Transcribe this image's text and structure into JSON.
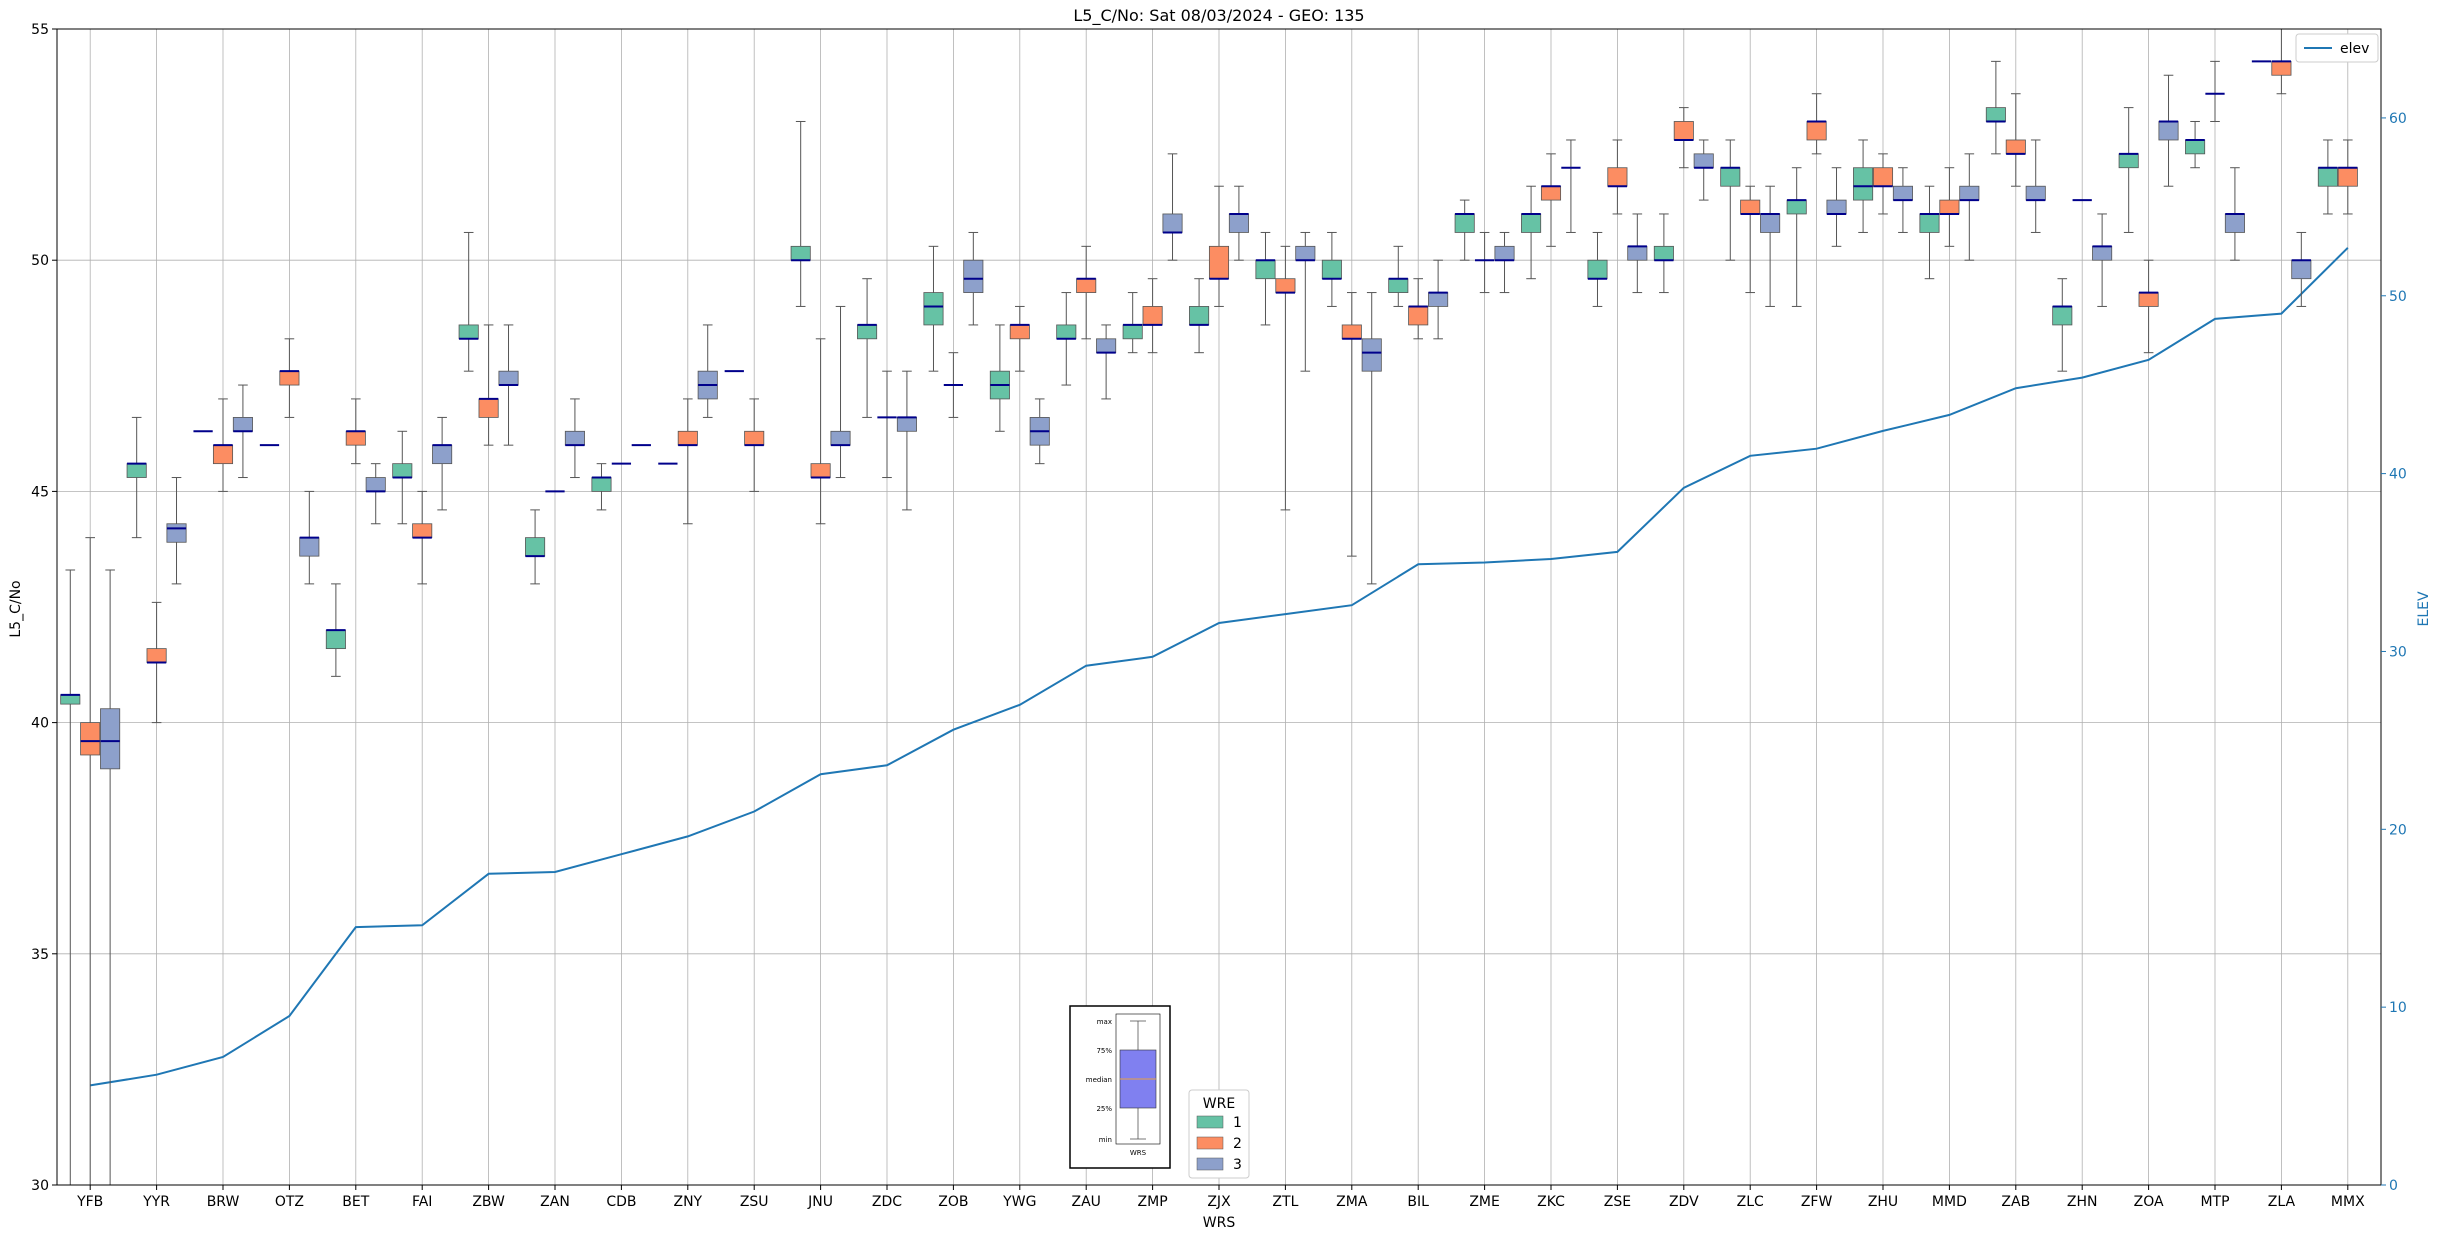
{
  "chart_data": {
    "type": "boxplot",
    "title": "L5_C/No: Sat 08/03/2024 - GEO: 135",
    "xlabel": "WRS",
    "ylabel": "L5_C/No",
    "y2label": "ELEV",
    "ylim": [
      30,
      55
    ],
    "y2lim": [
      0,
      65
    ],
    "yticks": [
      "30",
      "35",
      "40",
      "45",
      "50",
      "55"
    ],
    "y2ticks": [
      "0",
      "10",
      "20",
      "30",
      "40",
      "50",
      "60"
    ],
    "grid": true,
    "colors": {
      "wre1": "#66c2a5",
      "wre2": "#fc8d62",
      "wre3": "#8da0cb",
      "median": "#00008b",
      "whisker": "#555555",
      "elev_line": "#1f77b4",
      "y2_axis": "#1f77b4"
    },
    "categories": [
      "YFB",
      "YYR",
      "BRW",
      "OTZ",
      "BET",
      "FAI",
      "ZBW",
      "ZAN",
      "CDB",
      "ZNY",
      "ZSU",
      "JNU",
      "ZDC",
      "ZOB",
      "YWG",
      "ZAU",
      "ZMP",
      "ZJX",
      "ZTL",
      "ZMA",
      "BIL",
      "ZME",
      "ZKC",
      "ZSE",
      "ZDV",
      "ZLC",
      "ZFW",
      "ZHU",
      "MMD",
      "ZAB",
      "ZHN",
      "ZOA",
      "MTP",
      "ZLA",
      "MMX"
    ],
    "legend": {
      "title": "WRE",
      "items": [
        "1",
        "2",
        "3"
      ],
      "placement": "bottom-center"
    },
    "legend_elev": {
      "label": "elev",
      "placement": "top-right"
    },
    "boxes": [
      {
        "wrs": "YFB",
        "wre": 1,
        "min": 30,
        "q1": 40.4,
        "median": 40.6,
        "q3": 40.6,
        "max": 43.3
      },
      {
        "wrs": "YFB",
        "wre": 2,
        "min": 30,
        "q1": 39.3,
        "median": 39.6,
        "q3": 40,
        "max": 44
      },
      {
        "wrs": "YFB",
        "wre": 3,
        "min": 30,
        "q1": 39,
        "median": 39.6,
        "q3": 40.3,
        "max": 43.3
      },
      {
        "wrs": "YYR",
        "wre": 1,
        "min": 44,
        "q1": 45.3,
        "median": 45.6,
        "q3": 45.6,
        "max": 46.6
      },
      {
        "wrs": "YYR",
        "wre": 2,
        "min": 40,
        "q1": 41.3,
        "median": 41.3,
        "q3": 41.6,
        "max": 42.6
      },
      {
        "wrs": "YYR",
        "wre": 3,
        "min": 43,
        "q1": 43.9,
        "median": 44.2,
        "q3": 44.3,
        "max": 45.3
      },
      {
        "wrs": "BRW",
        "wre": 1,
        "min": 46.3,
        "q1": 46.3,
        "median": 46.3,
        "q3": 46.3,
        "max": 46.3
      },
      {
        "wrs": "BRW",
        "wre": 2,
        "min": 45,
        "q1": 45.6,
        "median": 46,
        "q3": 46,
        "max": 47
      },
      {
        "wrs": "BRW",
        "wre": 3,
        "min": 45.3,
        "q1": 46.3,
        "median": 46.3,
        "q3": 46.6,
        "max": 47.3
      },
      {
        "wrs": "OTZ",
        "wre": 1,
        "min": 46,
        "q1": 46,
        "median": 46,
        "q3": 46,
        "max": 46
      },
      {
        "wrs": "OTZ",
        "wre": 2,
        "min": 46.6,
        "q1": 47.3,
        "median": 47.6,
        "q3": 47.6,
        "max": 48.3
      },
      {
        "wrs": "OTZ",
        "wre": 3,
        "min": 43,
        "q1": 43.6,
        "median": 44,
        "q3": 44,
        "max": 45
      },
      {
        "wrs": "BET",
        "wre": 1,
        "min": 41,
        "q1": 41.6,
        "median": 42,
        "q3": 42,
        "max": 43
      },
      {
        "wrs": "BET",
        "wre": 2,
        "min": 45.6,
        "q1": 46,
        "median": 46.3,
        "q3": 46.3,
        "max": 47
      },
      {
        "wrs": "BET",
        "wre": 3,
        "min": 44.3,
        "q1": 45,
        "median": 45,
        "q3": 45.3,
        "max": 45.6
      },
      {
        "wrs": "FAI",
        "wre": 1,
        "min": 44.3,
        "q1": 45.3,
        "median": 45.3,
        "q3": 45.6,
        "max": 46.3
      },
      {
        "wrs": "FAI",
        "wre": 2,
        "min": 43,
        "q1": 44,
        "median": 44,
        "q3": 44.3,
        "max": 45
      },
      {
        "wrs": "FAI",
        "wre": 3,
        "min": 44.6,
        "q1": 45.6,
        "median": 46,
        "q3": 46,
        "max": 46.6
      },
      {
        "wrs": "ZBW",
        "wre": 1,
        "min": 47.6,
        "q1": 48.3,
        "median": 48.3,
        "q3": 48.6,
        "max": 50.6
      },
      {
        "wrs": "ZBW",
        "wre": 2,
        "min": 46,
        "q1": 46.6,
        "median": 47,
        "q3": 47,
        "max": 48.6
      },
      {
        "wrs": "ZBW",
        "wre": 3,
        "min": 46,
        "q1": 47.3,
        "median": 47.3,
        "q3": 47.6,
        "max": 48.6
      },
      {
        "wrs": "ZAN",
        "wre": 1,
        "min": 43,
        "q1": 43.6,
        "median": 43.6,
        "q3": 44,
        "max": 44.6
      },
      {
        "wrs": "ZAN",
        "wre": 2,
        "min": 45,
        "q1": 45,
        "median": 45,
        "q3": 45,
        "max": 45
      },
      {
        "wrs": "ZAN",
        "wre": 3,
        "min": 45.3,
        "q1": 46,
        "median": 46,
        "q3": 46.3,
        "max": 47
      },
      {
        "wrs": "CDB",
        "wre": 1,
        "min": 44.6,
        "q1": 45,
        "median": 45.3,
        "q3": 45.3,
        "max": 45.6
      },
      {
        "wrs": "CDB",
        "wre": 2,
        "min": 45.6,
        "q1": 45.6,
        "median": 45.6,
        "q3": 45.6,
        "max": 45.6
      },
      {
        "wrs": "CDB",
        "wre": 3,
        "min": 46,
        "q1": 46,
        "median": 46,
        "q3": 46,
        "max": 46
      },
      {
        "wrs": "ZNY",
        "wre": 1,
        "min": 45.6,
        "q1": 45.6,
        "median": 45.6,
        "q3": 45.6,
        "max": 45.6
      },
      {
        "wrs": "ZNY",
        "wre": 2,
        "min": 44.3,
        "q1": 46,
        "median": 46,
        "q3": 46.3,
        "max": 47
      },
      {
        "wrs": "ZNY",
        "wre": 3,
        "min": 46.6,
        "q1": 47,
        "median": 47.3,
        "q3": 47.6,
        "max": 48.6
      },
      {
        "wrs": "ZSU",
        "wre": 1,
        "min": 47.6,
        "q1": 47.6,
        "median": 47.6,
        "q3": 47.6,
        "max": 47.6
      },
      {
        "wrs": "ZSU",
        "wre": 2,
        "min": 45,
        "q1": 46,
        "median": 46,
        "q3": 46.3,
        "max": 47
      },
      {
        "wrs": "JNU",
        "wre": 1,
        "min": 49,
        "q1": 50,
        "median": 50,
        "q3": 50.3,
        "max": 53
      },
      {
        "wrs": "JNU",
        "wre": 2,
        "min": 44.3,
        "q1": 45.3,
        "median": 45.3,
        "q3": 45.6,
        "max": 48.3
      },
      {
        "wrs": "JNU",
        "wre": 3,
        "min": 45.3,
        "q1": 46,
        "median": 46,
        "q3": 46.3,
        "max": 49
      },
      {
        "wrs": "ZDC",
        "wre": 1,
        "min": 46.6,
        "q1": 48.3,
        "median": 48.6,
        "q3": 48.6,
        "max": 49.6
      },
      {
        "wrs": "ZDC",
        "wre": 2,
        "min": 45.3,
        "q1": 46.6,
        "median": 46.6,
        "q3": 46.6,
        "max": 47.6
      },
      {
        "wrs": "ZDC",
        "wre": 3,
        "min": 44.6,
        "q1": 46.3,
        "median": 46.6,
        "q3": 46.6,
        "max": 47.6
      },
      {
        "wrs": "ZOB",
        "wre": 1,
        "min": 47.6,
        "q1": 48.6,
        "median": 49,
        "q3": 49.3,
        "max": 50.3
      },
      {
        "wrs": "ZOB",
        "wre": 2,
        "min": 46.6,
        "q1": 47.3,
        "median": 47.3,
        "q3": 47.3,
        "max": 48
      },
      {
        "wrs": "ZOB",
        "wre": 3,
        "min": 48.6,
        "q1": 49.3,
        "median": 49.6,
        "q3": 50,
        "max": 50.6
      },
      {
        "wrs": "YWG",
        "wre": 1,
        "min": 46.3,
        "q1": 47,
        "median": 47.3,
        "q3": 47.6,
        "max": 48.6
      },
      {
        "wrs": "YWG",
        "wre": 2,
        "min": 47.6,
        "q1": 48.3,
        "median": 48.6,
        "q3": 48.6,
        "max": 49
      },
      {
        "wrs": "YWG",
        "wre": 3,
        "min": 45.6,
        "q1": 46,
        "median": 46.3,
        "q3": 46.6,
        "max": 47
      },
      {
        "wrs": "ZAU",
        "wre": 1,
        "min": 47.3,
        "q1": 48.3,
        "median": 48.3,
        "q3": 48.6,
        "max": 49.3
      },
      {
        "wrs": "ZAU",
        "wre": 2,
        "min": 48.3,
        "q1": 49.3,
        "median": 49.6,
        "q3": 49.6,
        "max": 50.3
      },
      {
        "wrs": "ZAU",
        "wre": 3,
        "min": 47,
        "q1": 48,
        "median": 48,
        "q3": 48.3,
        "max": 48.6
      },
      {
        "wrs": "ZMP",
        "wre": 1,
        "min": 48,
        "q1": 48.3,
        "median": 48.6,
        "q3": 48.6,
        "max": 49.3
      },
      {
        "wrs": "ZMP",
        "wre": 2,
        "min": 48,
        "q1": 48.6,
        "median": 48.6,
        "q3": 49,
        "max": 49.6
      },
      {
        "wrs": "ZMP",
        "wre": 3,
        "min": 50,
        "q1": 50.6,
        "median": 50.6,
        "q3": 51,
        "max": 52.3
      },
      {
        "wrs": "ZJX",
        "wre": 1,
        "min": 48,
        "q1": 48.6,
        "median": 48.6,
        "q3": 49,
        "max": 49.6
      },
      {
        "wrs": "ZJX",
        "wre": 2,
        "min": 49,
        "q1": 49.6,
        "median": 49.6,
        "q3": 50.3,
        "max": 51.6
      },
      {
        "wrs": "ZJX",
        "wre": 3,
        "min": 50,
        "q1": 50.6,
        "median": 51,
        "q3": 51,
        "max": 51.6
      },
      {
        "wrs": "ZTL",
        "wre": 1,
        "min": 48.6,
        "q1": 49.6,
        "median": 50,
        "q3": 50,
        "max": 50.6
      },
      {
        "wrs": "ZTL",
        "wre": 2,
        "min": 44.6,
        "q1": 49.3,
        "median": 49.3,
        "q3": 49.6,
        "max": 50.3
      },
      {
        "wrs": "ZTL",
        "wre": 3,
        "min": 47.6,
        "q1": 50,
        "median": 50,
        "q3": 50.3,
        "max": 50.6
      },
      {
        "wrs": "ZMA",
        "wre": 1,
        "min": 49,
        "q1": 49.6,
        "median": 49.6,
        "q3": 50,
        "max": 50.6
      },
      {
        "wrs": "ZMA",
        "wre": 2,
        "min": 43.6,
        "q1": 48.3,
        "median": 48.3,
        "q3": 48.6,
        "max": 49.3
      },
      {
        "wrs": "ZMA",
        "wre": 3,
        "min": 43,
        "q1": 47.6,
        "median": 48,
        "q3": 48.3,
        "max": 49.3
      },
      {
        "wrs": "BIL",
        "wre": 1,
        "min": 49,
        "q1": 49.3,
        "median": 49.6,
        "q3": 49.6,
        "max": 50.3
      },
      {
        "wrs": "BIL",
        "wre": 2,
        "min": 48.3,
        "q1": 48.6,
        "median": 49,
        "q3": 49,
        "max": 49.6
      },
      {
        "wrs": "BIL",
        "wre": 3,
        "min": 48.3,
        "q1": 49,
        "median": 49.3,
        "q3": 49.3,
        "max": 50
      },
      {
        "wrs": "ZME",
        "wre": 1,
        "min": 50,
        "q1": 50.6,
        "median": 51,
        "q3": 51,
        "max": 51.3
      },
      {
        "wrs": "ZME",
        "wre": 2,
        "min": 49.3,
        "q1": 50,
        "median": 50,
        "q3": 50,
        "max": 50.6
      },
      {
        "wrs": "ZME",
        "wre": 3,
        "min": 49.3,
        "q1": 50,
        "median": 50,
        "q3": 50.3,
        "max": 50.6
      },
      {
        "wrs": "ZKC",
        "wre": 1,
        "min": 49.6,
        "q1": 50.6,
        "median": 51,
        "q3": 51,
        "max": 51.6
      },
      {
        "wrs": "ZKC",
        "wre": 2,
        "min": 50.3,
        "q1": 51.3,
        "median": 51.6,
        "q3": 51.6,
        "max": 52.3
      },
      {
        "wrs": "ZKC",
        "wre": 3,
        "min": 50.6,
        "q1": 52,
        "median": 52,
        "q3": 52,
        "max": 52.6
      },
      {
        "wrs": "ZSE",
        "wre": 1,
        "min": 49,
        "q1": 49.6,
        "median": 49.6,
        "q3": 50,
        "max": 50.6
      },
      {
        "wrs": "ZSE",
        "wre": 2,
        "min": 51,
        "q1": 51.6,
        "median": 51.6,
        "q3": 52,
        "max": 52.6
      },
      {
        "wrs": "ZSE",
        "wre": 3,
        "min": 49.3,
        "q1": 50,
        "median": 50.3,
        "q3": 50.3,
        "max": 51
      },
      {
        "wrs": "ZDV",
        "wre": 1,
        "min": 49.3,
        "q1": 50,
        "median": 50,
        "q3": 50.3,
        "max": 51
      },
      {
        "wrs": "ZDV",
        "wre": 2,
        "min": 52,
        "q1": 52.6,
        "median": 52.6,
        "q3": 53,
        "max": 53.3
      },
      {
        "wrs": "ZDV",
        "wre": 3,
        "min": 51.3,
        "q1": 52,
        "median": 52,
        "q3": 52.3,
        "max": 52.6
      },
      {
        "wrs": "ZLC",
        "wre": 1,
        "min": 50,
        "q1": 51.6,
        "median": 52,
        "q3": 52,
        "max": 52.6
      },
      {
        "wrs": "ZLC",
        "wre": 2,
        "min": 49.3,
        "q1": 51,
        "median": 51,
        "q3": 51.3,
        "max": 51.6
      },
      {
        "wrs": "ZLC",
        "wre": 3,
        "min": 49,
        "q1": 50.6,
        "median": 51,
        "q3": 51,
        "max": 51.6
      },
      {
        "wrs": "ZFW",
        "wre": 1,
        "min": 49,
        "q1": 51,
        "median": 51.3,
        "q3": 51.3,
        "max": 52
      },
      {
        "wrs": "ZFW",
        "wre": 2,
        "min": 52.3,
        "q1": 52.6,
        "median": 53,
        "q3": 53,
        "max": 53.6
      },
      {
        "wrs": "ZFW",
        "wre": 3,
        "min": 50.3,
        "q1": 51,
        "median": 51,
        "q3": 51.3,
        "max": 52
      },
      {
        "wrs": "ZHU",
        "wre": 1,
        "min": 50.6,
        "q1": 51.3,
        "median": 51.6,
        "q3": 52,
        "max": 52.6
      },
      {
        "wrs": "ZHU",
        "wre": 2,
        "min": 51,
        "q1": 51.6,
        "median": 51.6,
        "q3": 52,
        "max": 52.3
      },
      {
        "wrs": "ZHU",
        "wre": 3,
        "min": 50.6,
        "q1": 51.3,
        "median": 51.3,
        "q3": 51.6,
        "max": 52
      },
      {
        "wrs": "MMD",
        "wre": 1,
        "min": 49.6,
        "q1": 50.6,
        "median": 51,
        "q3": 51,
        "max": 51.6
      },
      {
        "wrs": "MMD",
        "wre": 2,
        "min": 50.3,
        "q1": 51,
        "median": 51,
        "q3": 51.3,
        "max": 52
      },
      {
        "wrs": "MMD",
        "wre": 3,
        "min": 50,
        "q1": 51.3,
        "median": 51.3,
        "q3": 51.6,
        "max": 52.3
      },
      {
        "wrs": "ZAB",
        "wre": 1,
        "min": 52.3,
        "q1": 53,
        "median": 53,
        "q3": 53.3,
        "max": 54.3
      },
      {
        "wrs": "ZAB",
        "wre": 2,
        "min": 51.6,
        "q1": 52.3,
        "median": 52.3,
        "q3": 52.6,
        "max": 53.6
      },
      {
        "wrs": "ZAB",
        "wre": 3,
        "min": 50.6,
        "q1": 51.3,
        "median": 51.3,
        "q3": 51.6,
        "max": 52.6
      },
      {
        "wrs": "ZHN",
        "wre": 1,
        "min": 47.6,
        "q1": 48.6,
        "median": 49,
        "q3": 49,
        "max": 49.6
      },
      {
        "wrs": "ZHN",
        "wre": 2,
        "min": 51.3,
        "q1": 51.3,
        "median": 51.3,
        "q3": 51.3,
        "max": 51.3
      },
      {
        "wrs": "ZHN",
        "wre": 3,
        "min": 49,
        "q1": 50,
        "median": 50.3,
        "q3": 50.3,
        "max": 51
      },
      {
        "wrs": "ZOA",
        "wre": 1,
        "min": 50.6,
        "q1": 52,
        "median": 52.3,
        "q3": 52.3,
        "max": 53.3
      },
      {
        "wrs": "ZOA",
        "wre": 2,
        "min": 48,
        "q1": 49,
        "median": 49.3,
        "q3": 49.3,
        "max": 50
      },
      {
        "wrs": "ZOA",
        "wre": 3,
        "min": 51.6,
        "q1": 52.6,
        "median": 53,
        "q3": 53,
        "max": 54
      },
      {
        "wrs": "MTP",
        "wre": 1,
        "min": 52,
        "q1": 52.3,
        "median": 52.6,
        "q3": 52.6,
        "max": 53
      },
      {
        "wrs": "MTP",
        "wre": 2,
        "min": 53,
        "q1": 53.6,
        "median": 53.6,
        "q3": 53.6,
        "max": 54.3
      },
      {
        "wrs": "MTP",
        "wre": 3,
        "min": 50,
        "q1": 50.6,
        "median": 51,
        "q3": 51,
        "max": 52
      },
      {
        "wrs": "ZLA",
        "wre": 1,
        "min": 54.3,
        "q1": 54.3,
        "median": 54.3,
        "q3": 54.3,
        "max": 54.3
      },
      {
        "wrs": "ZLA",
        "wre": 2,
        "min": 53.6,
        "q1": 54,
        "median": 54.3,
        "q3": 54.3,
        "max": 55
      },
      {
        "wrs": "ZLA",
        "wre": 3,
        "min": 49,
        "q1": 49.6,
        "median": 50,
        "q3": 50,
        "max": 50.6
      },
      {
        "wrs": "MMX",
        "wre": 1,
        "min": 51,
        "q1": 51.6,
        "median": 52,
        "q3": 52,
        "max": 52.6
      },
      {
        "wrs": "MMX",
        "wre": 2,
        "min": 51,
        "q1": 51.6,
        "median": 52,
        "q3": 52,
        "max": 52.6
      }
    ],
    "elev": [
      5.6,
      6.2,
      7.2,
      9.5,
      14.5,
      14.6,
      17.5,
      17.6,
      18.6,
      19.6,
      21,
      23.1,
      23.6,
      25.6,
      27,
      29.2,
      29.7,
      31.6,
      32.1,
      32.6,
      34.9,
      35,
      35.2,
      35.6,
      39.2,
      41,
      41.4,
      42.4,
      43.3,
      44.8,
      45.4,
      46.4,
      48.7,
      49,
      52.7
    ],
    "inset_legend": {
      "labels": [
        "max",
        "75%",
        "median",
        "25%",
        "min"
      ],
      "xtick": "WRS"
    }
  }
}
